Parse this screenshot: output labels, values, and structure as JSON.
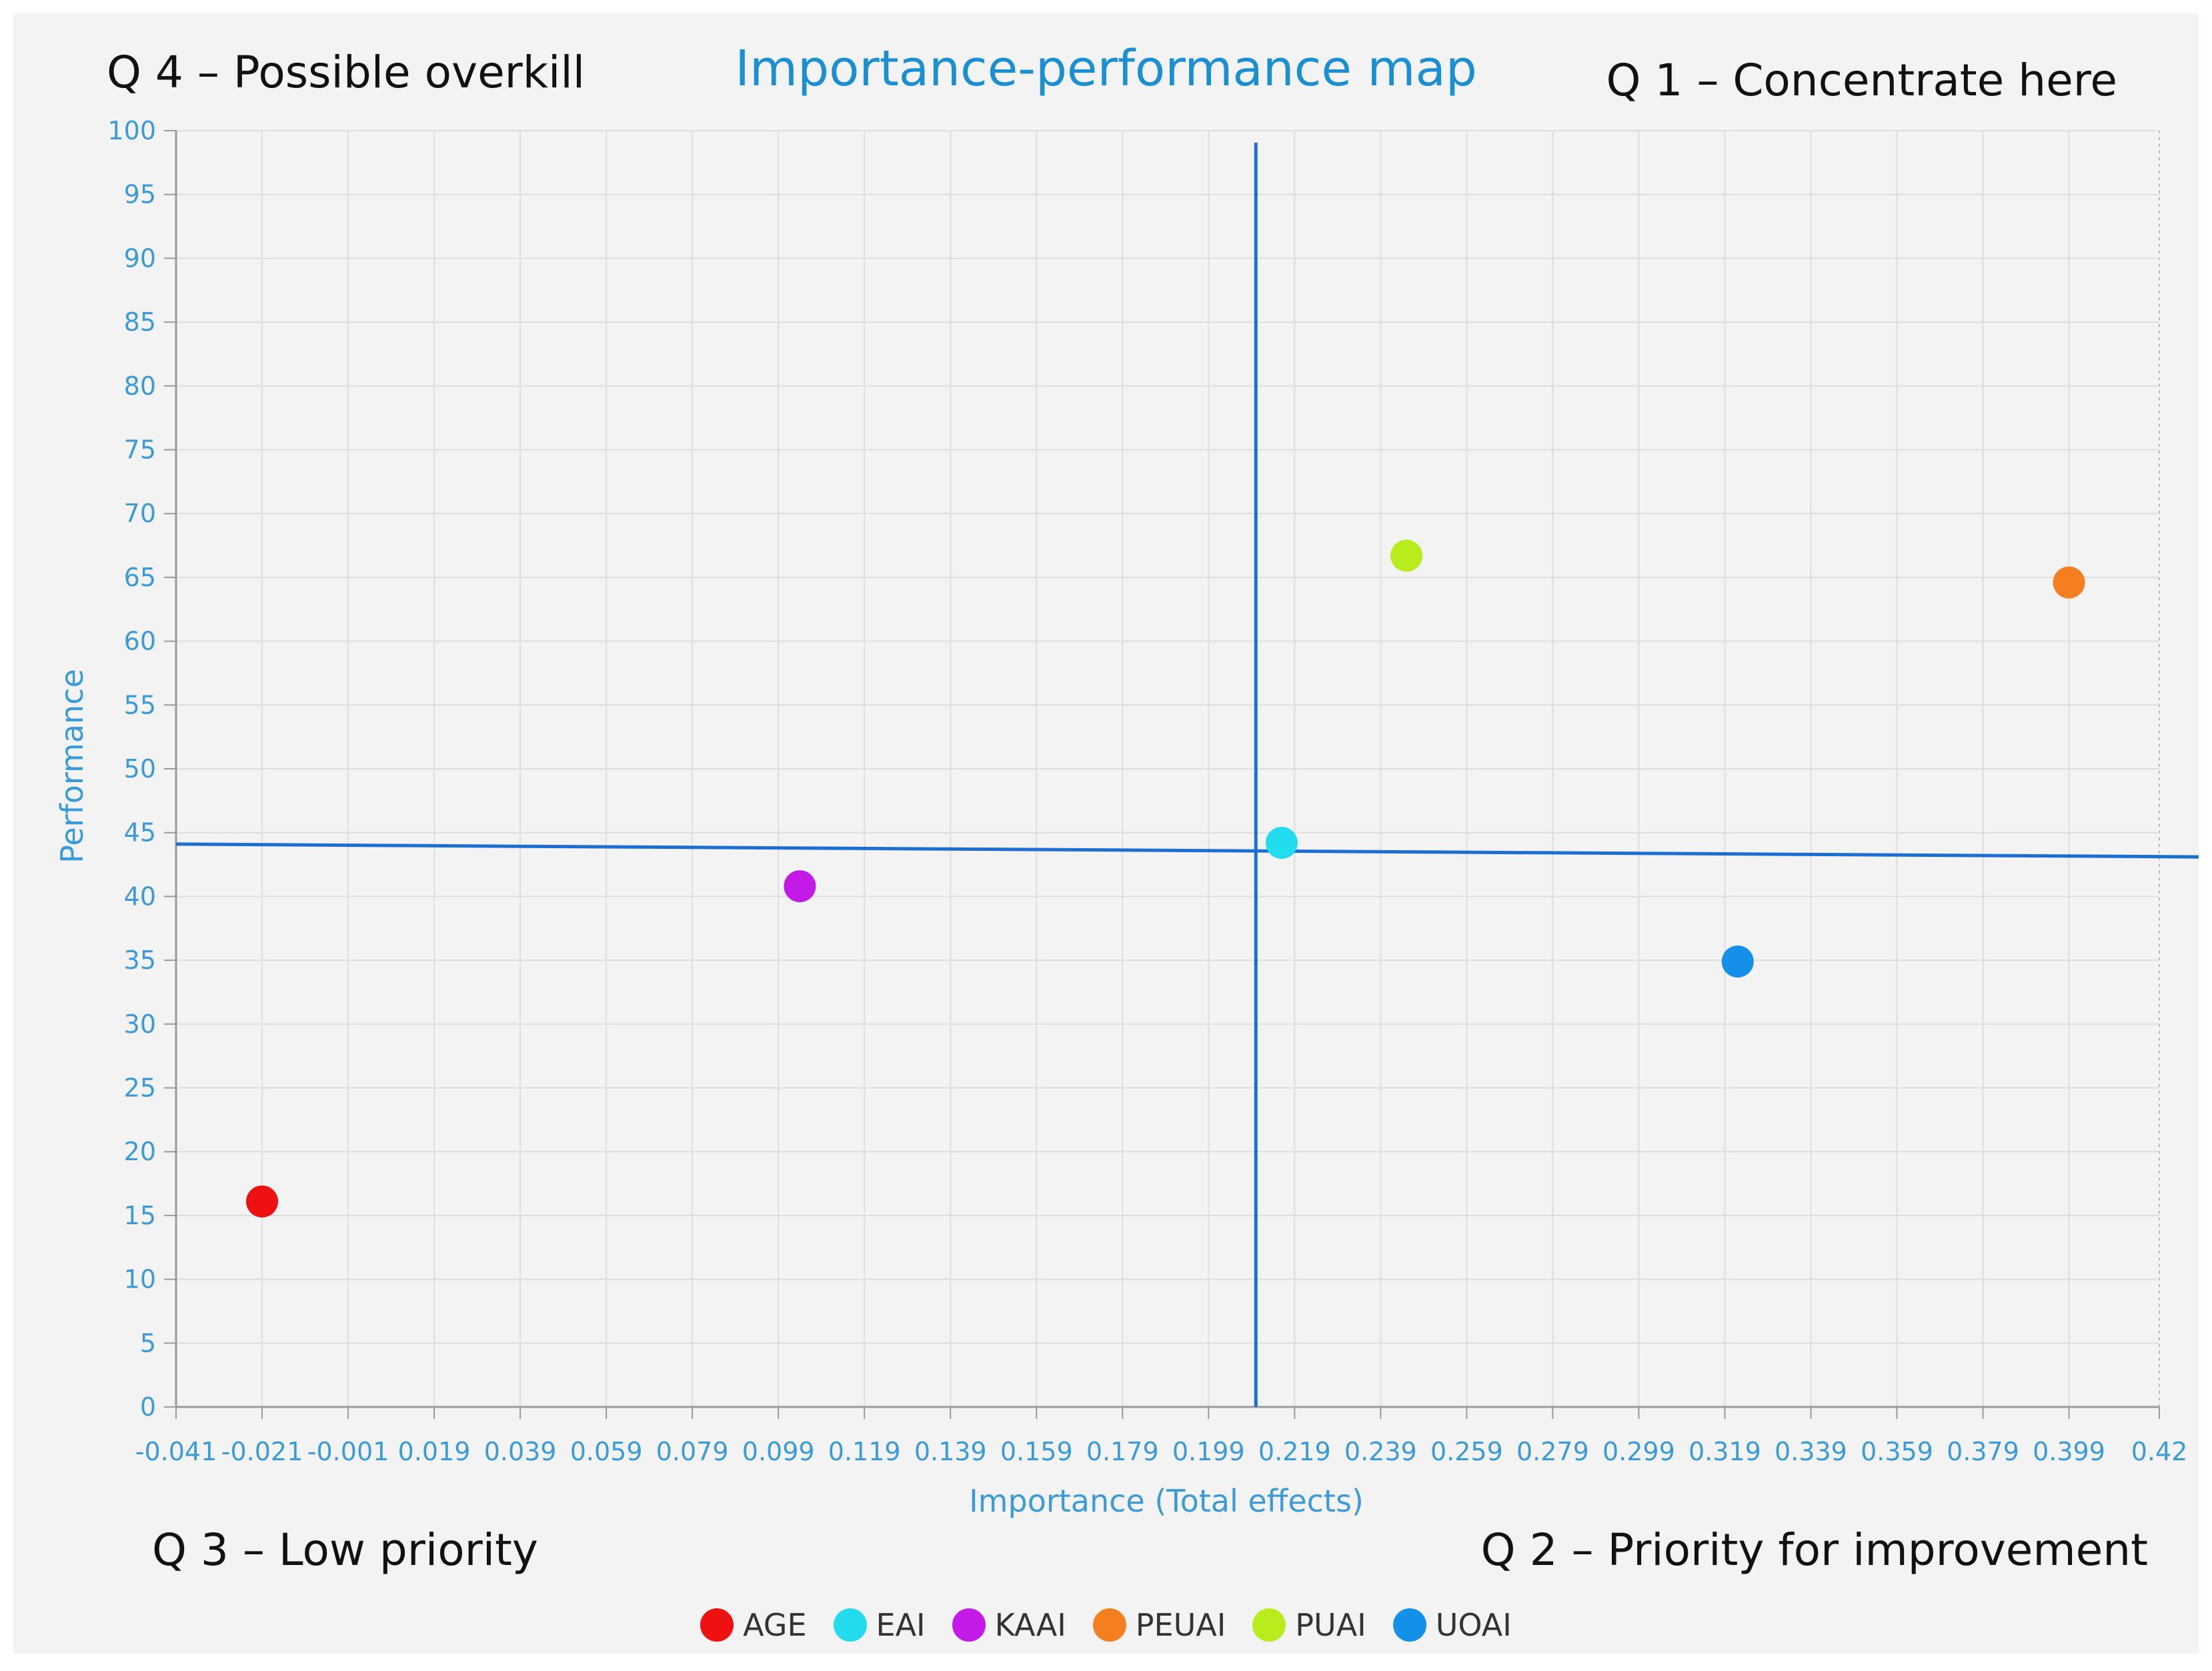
{
  "chart_data": {
    "type": "scatter",
    "title": "Importance-performance map",
    "xlabel": "Importance (Total effects)",
    "ylabel": "Performance",
    "xlim": [
      -0.041,
      0.42
    ],
    "ylim": [
      0,
      100
    ],
    "x_ticks": [
      "-0.041",
      "-0.021",
      "-0.001",
      "0.019",
      "0.039",
      "0.059",
      "0.079",
      "0.099",
      "0.119",
      "0.139",
      "0.159",
      "0.179",
      "0.199",
      "0.219",
      "0.239",
      "0.259",
      "0.279",
      "0.299",
      "0.319",
      "0.339",
      "0.359",
      "0.379",
      "0.399",
      "0.42"
    ],
    "y_ticks": [
      "0",
      "5",
      "10",
      "15",
      "20",
      "25",
      "30",
      "35",
      "40",
      "45",
      "50",
      "55",
      "60",
      "65",
      "70",
      "75",
      "80",
      "85",
      "90",
      "95",
      "100"
    ],
    "grid": true,
    "reference_lines": {
      "x": 0.21,
      "y_start": 44.1,
      "y_end": 43.1
    },
    "series": [
      {
        "name": "AGE",
        "color": "#ee1111",
        "x": -0.021,
        "y": 16.1
      },
      {
        "name": "EAI",
        "color": "#22dcee",
        "x": 0.216,
        "y": 44.2
      },
      {
        "name": "KAAI",
        "color": "#c41ae8",
        "x": 0.104,
        "y": 40.8
      },
      {
        "name": "PEUAI",
        "color": "#f57f1e",
        "x": 0.399,
        "y": 64.6
      },
      {
        "name": "PUAI",
        "color": "#b8ec1c",
        "x": 0.245,
        "y": 66.7
      },
      {
        "name": "UOAI",
        "color": "#1490e8",
        "x": 0.322,
        "y": 34.9
      }
    ],
    "legend_position": "bottom",
    "quadrants": {
      "q4": "Q 4 – Possible overkill",
      "q1": "Q 1 – Concentrate here",
      "q3": "Q 3 – Low priority",
      "q2": "Q 2 – Priority for improvement"
    }
  }
}
